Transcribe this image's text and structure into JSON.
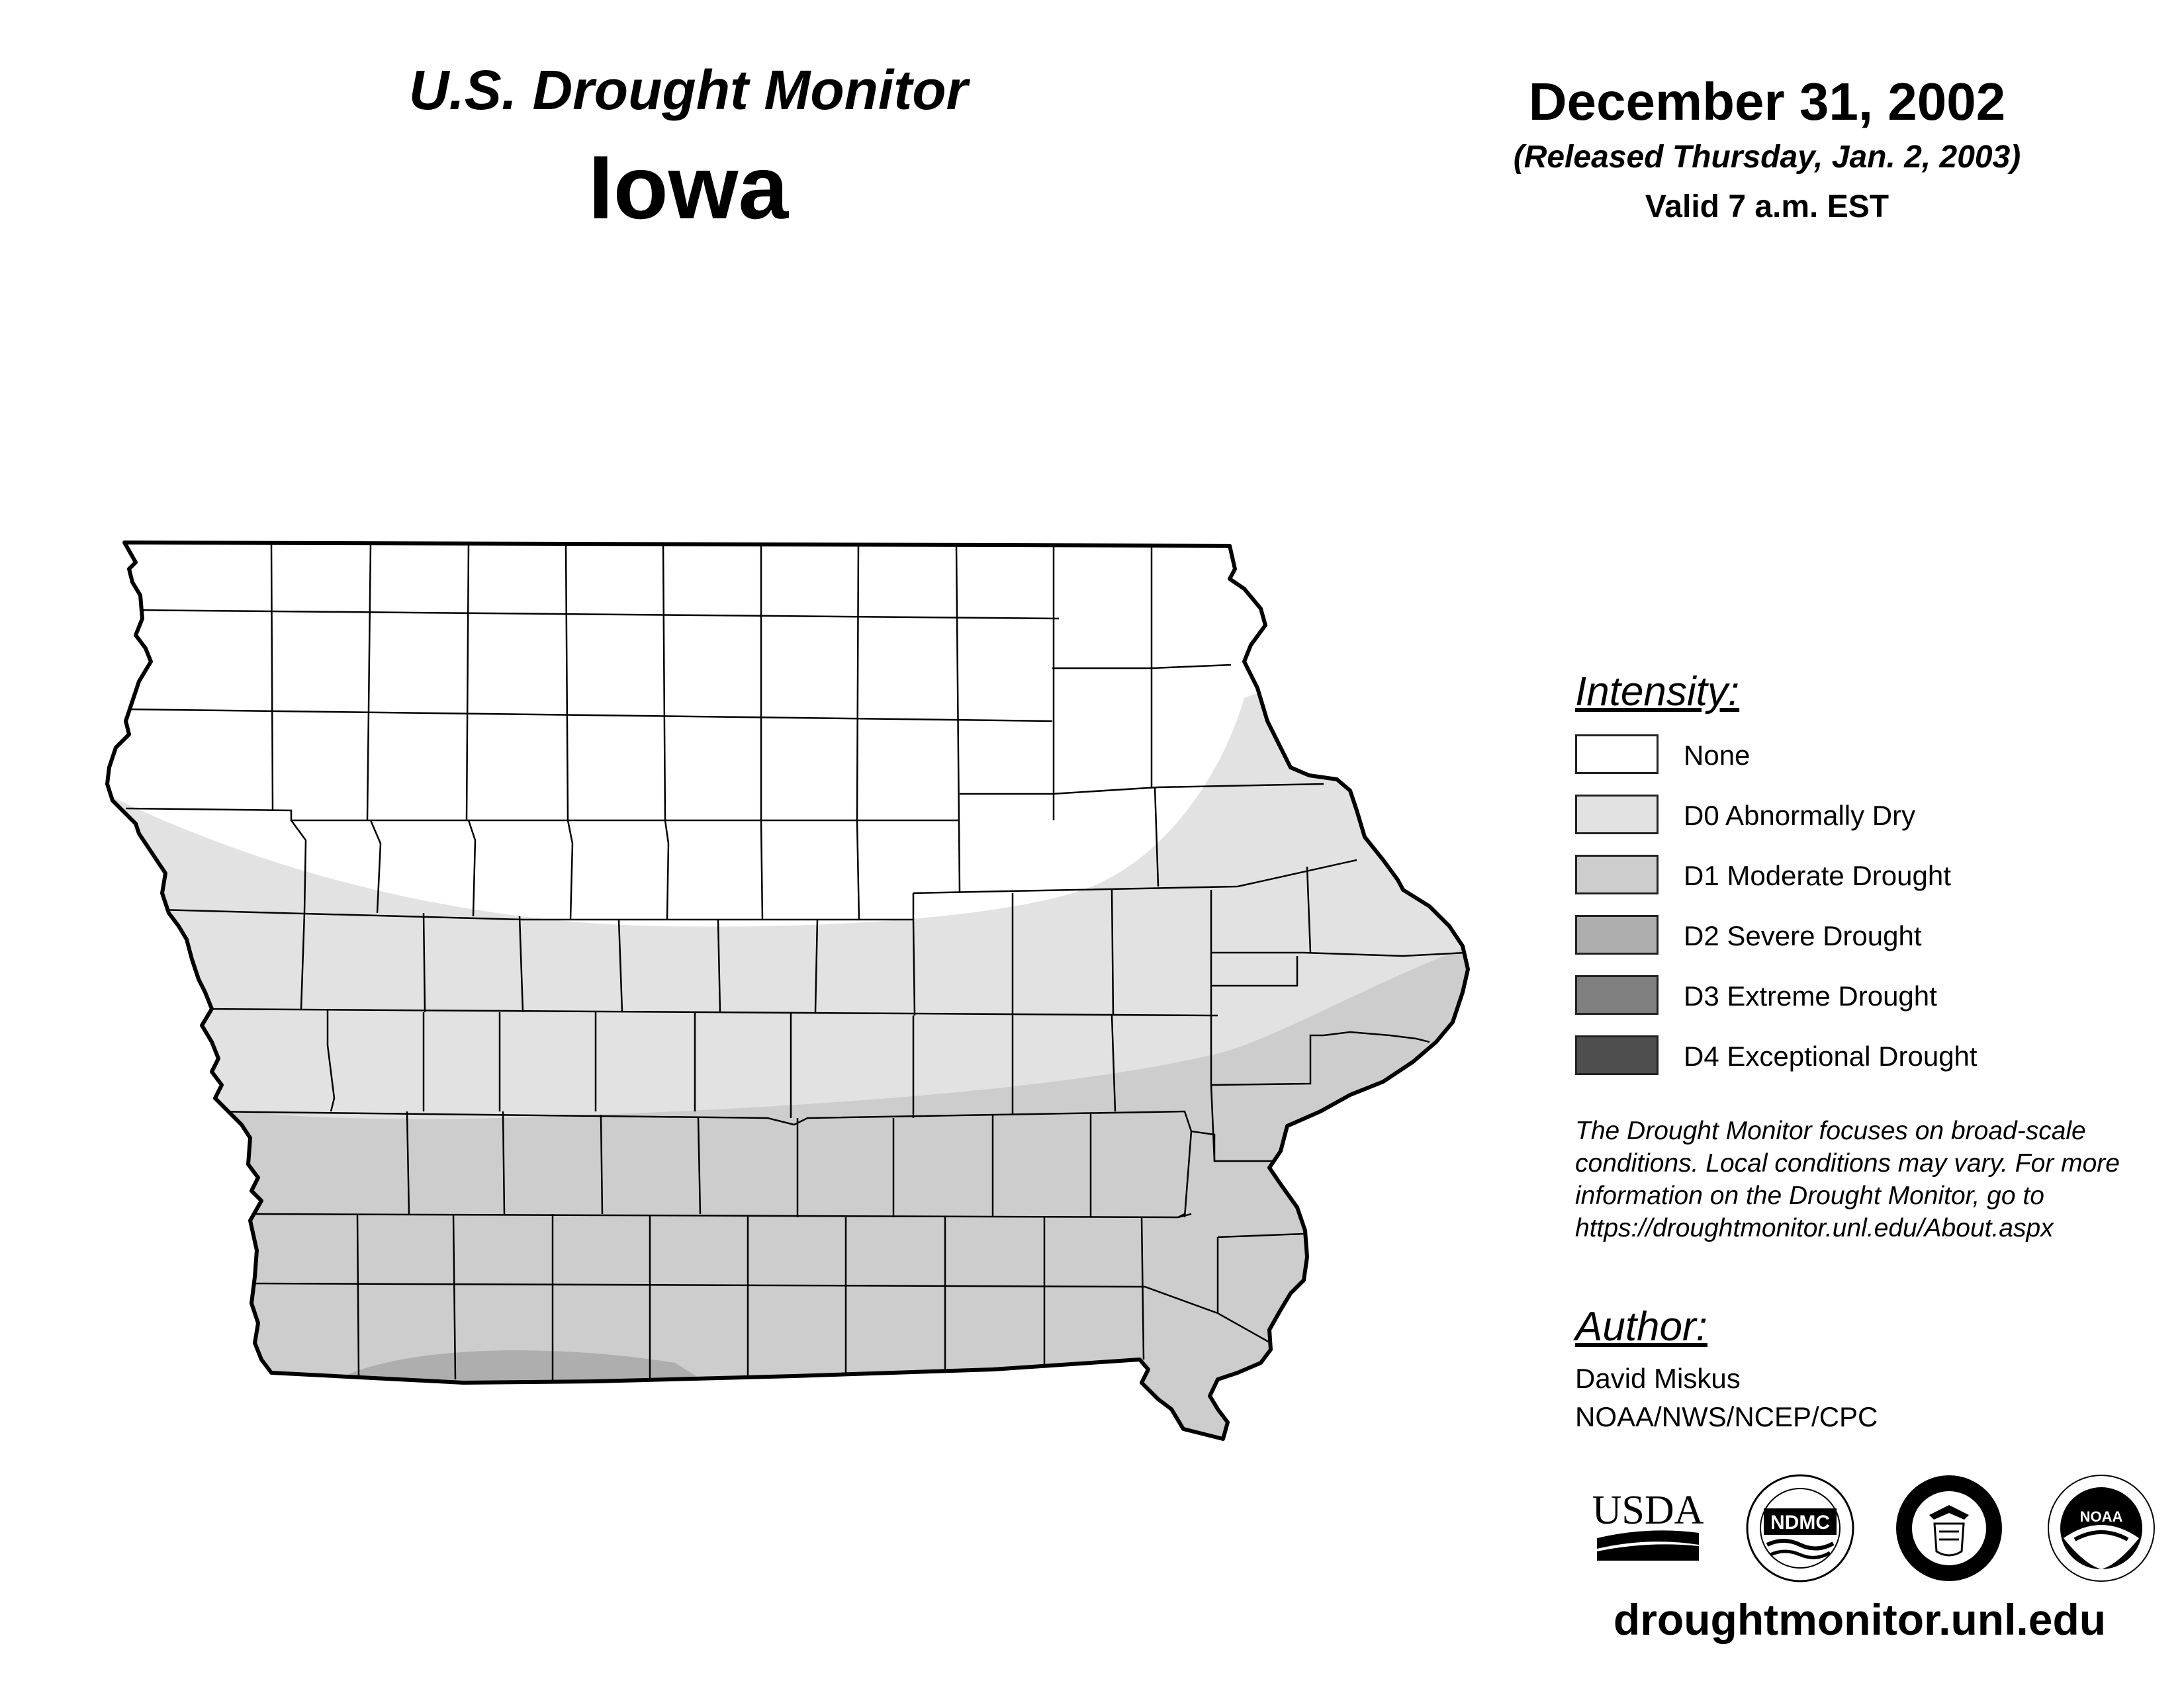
{
  "header": {
    "title": "U.S. Drought Monitor",
    "state": "Iowa",
    "date": "December 31, 2002",
    "released": "(Released Thursday, Jan. 2, 2003)",
    "valid": "Valid 7 a.m. EST"
  },
  "legend": {
    "title": "Intensity:",
    "items": [
      {
        "label": "None",
        "color": "#ffffff"
      },
      {
        "label": "D0 Abnormally Dry",
        "color": "#e2e2e2"
      },
      {
        "label": "D1 Moderate Drought",
        "color": "#cdcdcd"
      },
      {
        "label": "D2 Severe Drought",
        "color": "#aeaeae"
      },
      {
        "label": "D3 Extreme Drought",
        "color": "#808080"
      },
      {
        "label": "D4 Exceptional Drought",
        "color": "#4e4e4e"
      }
    ]
  },
  "disclaimer": {
    "lines": [
      "The Drought Monitor focuses on broad-scale",
      "conditions. Local conditions may vary. For more",
      "information on the Drought Monitor, go to",
      "https://droughtmonitor.unl.edu/About.aspx"
    ]
  },
  "author": {
    "title": "Author:",
    "name": "David Miskus",
    "org": "NOAA/NWS/NCEP/CPC"
  },
  "logos": {
    "usda": "USDA",
    "ndmc": "NDMC",
    "noaa": "NOAA"
  },
  "website": "droughtmonitor.unl.edu"
}
